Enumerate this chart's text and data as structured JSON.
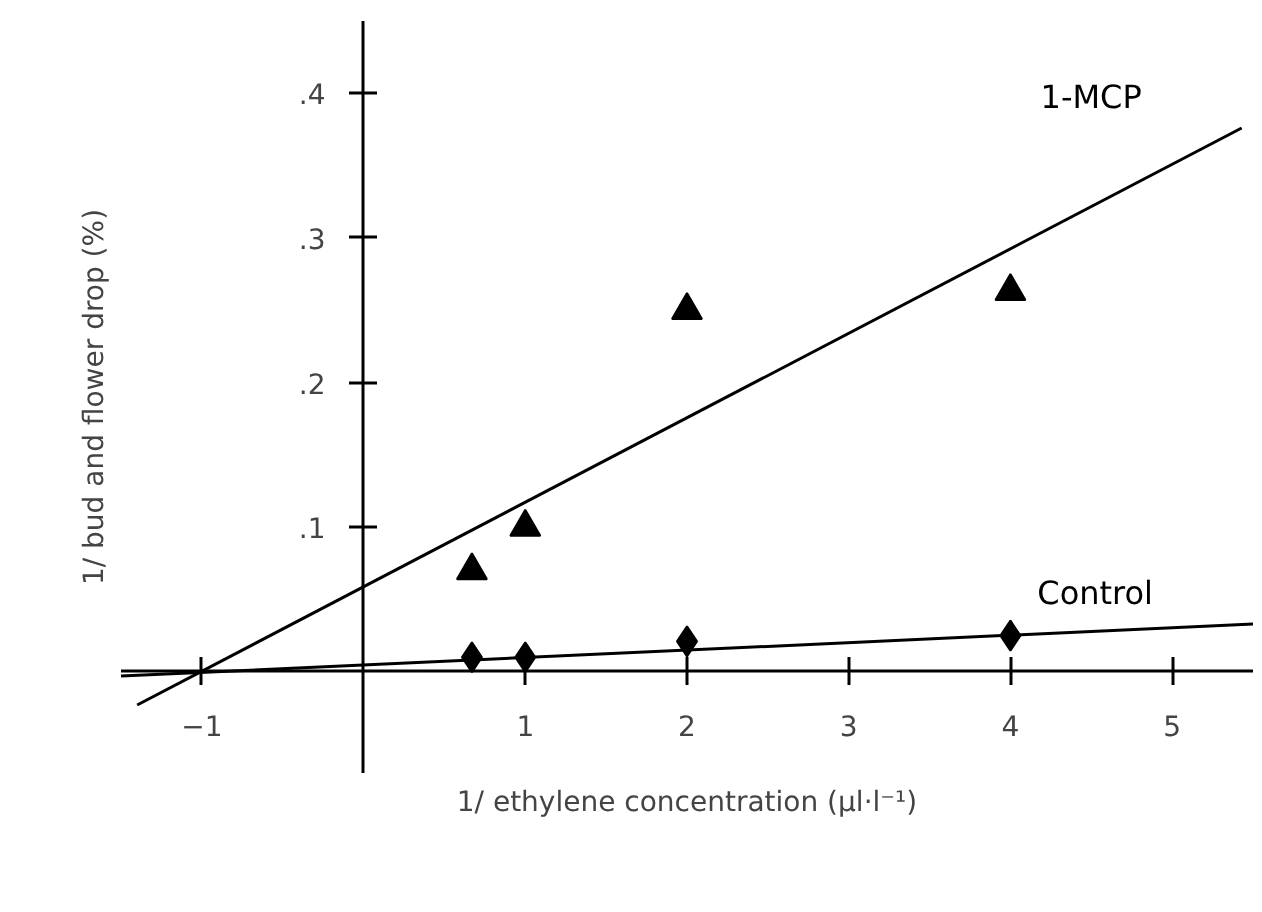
{
  "chart_data": {
    "type": "scatter",
    "xlabel": "1/ ethylene concentration (µl·l⁻¹)",
    "ylabel": "1/ bud and flower drop (%)",
    "xlim": [
      -1.5,
      5.5
    ],
    "ylim": [
      -0.07,
      0.45
    ],
    "xticks": [
      -1,
      1,
      2,
      3,
      4,
      5
    ],
    "yticks": [
      {
        "value": 0.1,
        "label": ".1"
      },
      {
        "value": 0.2,
        "label": ".2"
      },
      {
        "value": 0.3,
        "label": ".3"
      },
      {
        "value": 0.4,
        "label": ".4"
      }
    ],
    "grid": false,
    "series": [
      {
        "marker": "triangle",
        "color": "#000000",
        "x": [
          0.67,
          1,
          2,
          4
        ],
        "values": [
          0.07,
          0.1,
          0.25,
          0.263
        ]
      },
      {
        "marker": "diamond",
        "color": "#000000",
        "x": [
          0.67,
          1,
          2,
          4
        ],
        "values": [
          0.01,
          0.01,
          0.021,
          0.025
        ]
      },
      {
        "type": "line",
        "name": "1-MCP",
        "color": "#000000",
        "line_style": "solid",
        "x": [
          -1.4,
          5.43
        ],
        "values": [
          -0.023,
          0.376
        ]
      },
      {
        "type": "line",
        "name": "Control",
        "color": "#000000",
        "line_style": "solid",
        "x": [
          -1.5,
          5.5
        ],
        "values": [
          -0.003,
          0.033
        ]
      }
    ]
  }
}
